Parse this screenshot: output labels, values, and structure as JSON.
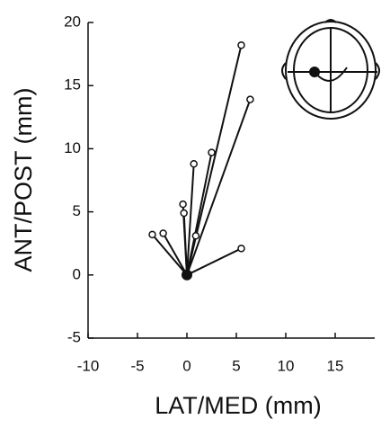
{
  "chart_data": {
    "type": "scatter",
    "x_label": "LAT/MED (mm)",
    "y_label": "ANT/POST (mm)",
    "x": [
      5.5,
      6.4,
      2.5,
      0.7,
      -0.4,
      -0.3,
      0.9,
      -3.5,
      -2.4,
      5.5
    ],
    "y": [
      18.2,
      13.9,
      9.7,
      8.8,
      5.6,
      4.9,
      3.1,
      3.2,
      3.3,
      2.1
    ],
    "origin_x": 0,
    "origin_y": 0,
    "color": "#111",
    "xlim": [
      -10,
      19
    ],
    "xticks": [
      -10,
      -5,
      0,
      5,
      10,
      15
    ],
    "ylim": [
      -5,
      20
    ],
    "yticks": [
      -5,
      0,
      5,
      10,
      15,
      20
    ]
  }
}
